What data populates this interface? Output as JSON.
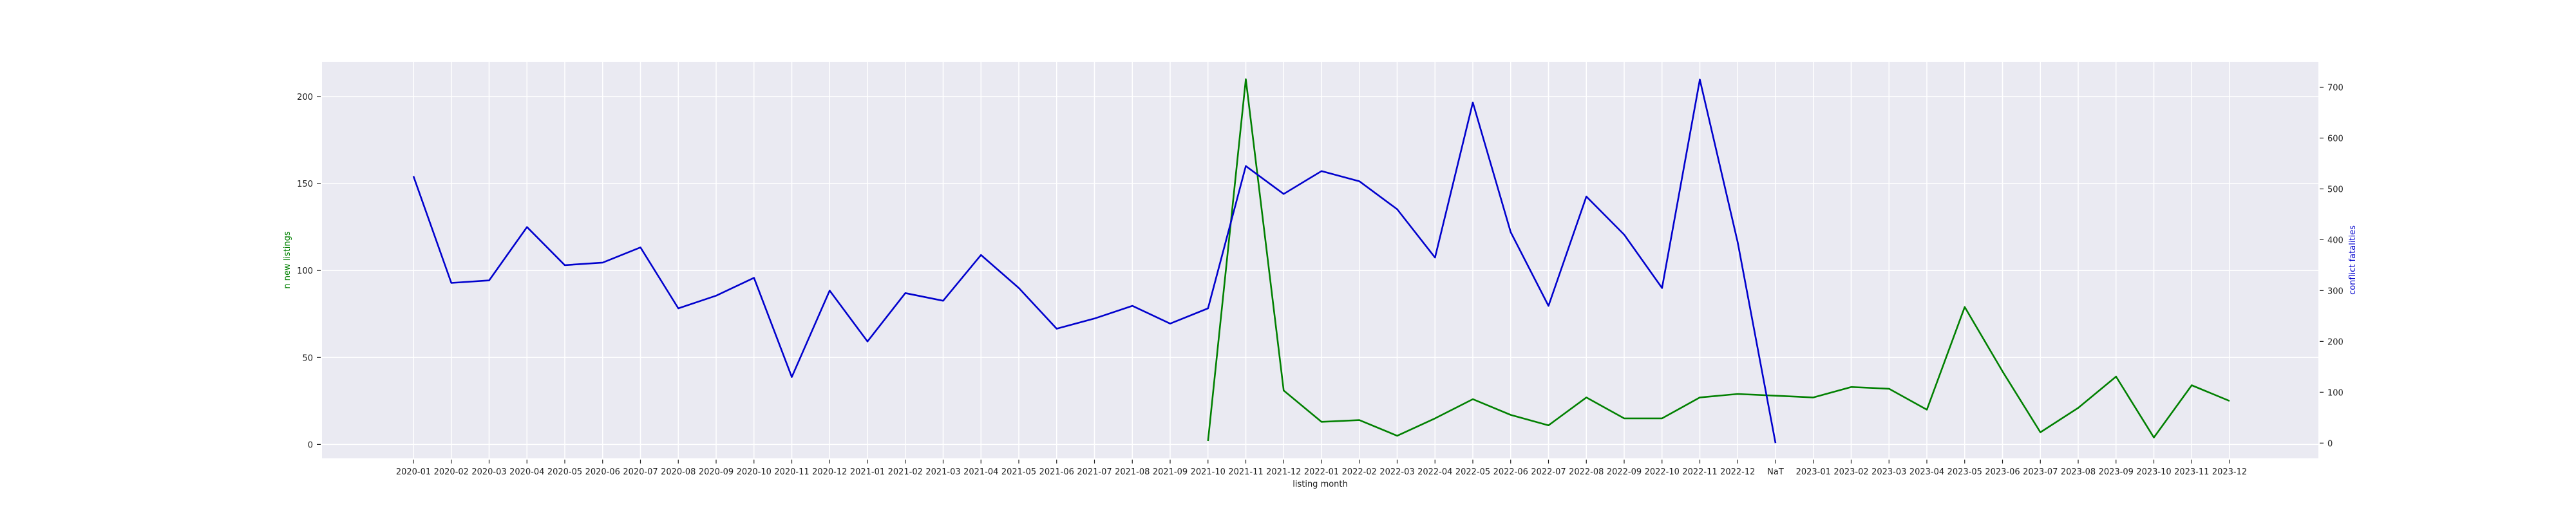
{
  "chart_data": {
    "type": "line",
    "title": "",
    "xlabel": "listing month",
    "ylabel_left": "n new listings",
    "ylabel_right": "conflict fatalities",
    "left_color": "#008000",
    "right_color": "#0000cd",
    "grid": true,
    "background": "#eaeaf2",
    "ylim_left": [
      -8,
      220
    ],
    "ylim_right": [
      -30,
      750
    ],
    "yticks_left": [
      0,
      50,
      100,
      150,
      200
    ],
    "yticks_right": [
      0,
      100,
      200,
      300,
      400,
      500,
      600,
      700
    ],
    "categories": [
      "2020-01",
      "2020-02",
      "2020-03",
      "2020-04",
      "2020-05",
      "2020-06",
      "2020-07",
      "2020-08",
      "2020-09",
      "2020-10",
      "2020-11",
      "2020-12",
      "2021-01",
      "2021-02",
      "2021-03",
      "2021-04",
      "2021-05",
      "2021-06",
      "2021-07",
      "2021-08",
      "2021-09",
      "2021-10",
      "2021-11",
      "2021-12",
      "2022-01",
      "2022-02",
      "2022-03",
      "2022-04",
      "2022-05",
      "2022-06",
      "2022-07",
      "2022-08",
      "2022-09",
      "2022-10",
      "2022-11",
      "2022-12",
      "NaT",
      "2023-01",
      "2023-02",
      "2023-03",
      "2023-04",
      "2023-05",
      "2023-06",
      "2023-07",
      "2023-08",
      "2023-09",
      "2023-10",
      "2023-11",
      "2023-12"
    ],
    "series": [
      {
        "name": "n new listings",
        "axis": "left",
        "color": "#008000",
        "values": [
          null,
          null,
          null,
          null,
          null,
          null,
          null,
          null,
          null,
          null,
          null,
          null,
          null,
          null,
          null,
          null,
          null,
          null,
          null,
          null,
          null,
          2,
          210,
          31,
          13,
          14,
          5,
          15,
          26,
          17,
          11,
          27,
          15,
          15,
          27,
          29,
          28,
          27,
          33,
          32,
          20,
          79,
          42,
          7,
          21,
          39,
          4,
          34,
          25
        ]
      },
      {
        "name": "conflict fatalities",
        "axis": "right",
        "color": "#0000cd",
        "values": [
          525,
          315,
          320,
          425,
          350,
          355,
          385,
          265,
          290,
          325,
          130,
          300,
          200,
          295,
          280,
          370,
          305,
          225,
          245,
          270,
          235,
          265,
          545,
          490,
          535,
          515,
          460,
          365,
          670,
          415,
          270,
          485,
          410,
          305,
          715,
          395,
          0,
          null,
          null,
          null,
          null,
          null,
          null,
          null,
          null,
          null,
          null,
          null,
          null
        ]
      }
    ]
  }
}
